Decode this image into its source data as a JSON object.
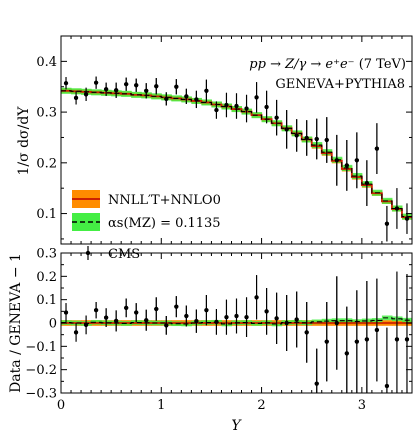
{
  "chart_data": [
    {
      "panel": "main",
      "type": "step-line-with-errorbars",
      "ylabel": "1/σ dσ/dY",
      "xlim": [
        0,
        3.5
      ],
      "ylim": [
        0.04,
        0.45
      ],
      "yticks": [
        "0.1",
        "0.2",
        "0.3",
        "0.4"
      ],
      "annotation": {
        "process": "pp → Z/γ → e⁺e⁻",
        "energy": "(7 TeV)",
        "generator": "GENEVA+PYTHIA8"
      },
      "legend": {
        "placement": "lower-left",
        "entries": [
          "NNLL′T+NNLO0",
          "αs(MZ) = 0.1135",
          "CMS"
        ]
      },
      "bin_edges": [
        0,
        0.1,
        0.2,
        0.3,
        0.4,
        0.5,
        0.6,
        0.7,
        0.8,
        0.9,
        1.0,
        1.1,
        1.2,
        1.3,
        1.4,
        1.5,
        1.6,
        1.7,
        1.8,
        1.9,
        2.0,
        2.1,
        2.2,
        2.3,
        2.4,
        2.5,
        2.6,
        2.7,
        2.8,
        2.9,
        3.0,
        3.1,
        3.2,
        3.3,
        3.4,
        3.5
      ],
      "series": [
        {
          "name": "NNLL′T+NNLO0",
          "color": "#cc2200",
          "band_color": "#ff8c00",
          "values": [
            0.342,
            0.341,
            0.34,
            0.339,
            0.338,
            0.337,
            0.336,
            0.334,
            0.333,
            0.331,
            0.329,
            0.327,
            0.325,
            0.322,
            0.319,
            0.315,
            0.311,
            0.306,
            0.301,
            0.294,
            0.286,
            0.278,
            0.268,
            0.258,
            0.246,
            0.233,
            0.219,
            0.204,
            0.188,
            0.172,
            0.156,
            0.14,
            0.124,
            0.109,
            0.093
          ],
          "band": 0.005
        },
        {
          "name": "αs(MZ) = 0.1135",
          "color": "#000000",
          "band_color": "#44ee44",
          "values": [
            0.342,
            0.341,
            0.34,
            0.339,
            0.338,
            0.337,
            0.336,
            0.334,
            0.333,
            0.331,
            0.329,
            0.327,
            0.325,
            0.322,
            0.319,
            0.315,
            0.311,
            0.306,
            0.301,
            0.294,
            0.286,
            0.278,
            0.268,
            0.258,
            0.246,
            0.235,
            0.221,
            0.206,
            0.19,
            0.174,
            0.158,
            0.141,
            0.125,
            0.11,
            0.094
          ],
          "band": 0.006
        },
        {
          "name": "CMS",
          "type": "errorbar",
          "color": "#000000",
          "x": [
            0.05,
            0.15,
            0.25,
            0.35,
            0.45,
            0.55,
            0.65,
            0.75,
            0.85,
            0.95,
            1.05,
            1.15,
            1.25,
            1.35,
            1.45,
            1.55,
            1.65,
            1.75,
            1.85,
            1.95,
            2.05,
            2.15,
            2.25,
            2.35,
            2.45,
            2.55,
            2.65,
            2.75,
            2.85,
            2.95,
            3.05,
            3.15,
            3.25,
            3.35,
            3.45
          ],
          "y": [
            0.357,
            0.328,
            0.335,
            0.358,
            0.345,
            0.343,
            0.355,
            0.353,
            0.342,
            0.351,
            0.326,
            0.35,
            0.331,
            0.325,
            0.342,
            0.304,
            0.314,
            0.312,
            0.307,
            0.329,
            0.31,
            0.289,
            0.266,
            0.254,
            0.249,
            0.247,
            0.245,
            0.205,
            0.195,
            0.205,
            0.16,
            0.228,
            0.08,
            0.11,
            0.09
          ],
          "err": [
            0.012,
            0.013,
            0.013,
            0.012,
            0.013,
            0.015,
            0.013,
            0.013,
            0.015,
            0.016,
            0.013,
            0.015,
            0.015,
            0.017,
            0.022,
            0.017,
            0.024,
            0.025,
            0.027,
            0.03,
            0.032,
            0.035,
            0.038,
            0.032,
            0.035,
            0.04,
            0.045,
            0.05,
            0.05,
            0.055,
            0.045,
            0.05,
            0.035,
            0.04,
            0.03
          ]
        }
      ]
    },
    {
      "panel": "ratio",
      "type": "step-line-with-errorbars",
      "xlabel": "Y",
      "ylabel": "Data / GENEVA − 1",
      "xlim": [
        0,
        3.5
      ],
      "ylim": [
        -0.3,
        0.3
      ],
      "xticks": [
        "0",
        "1",
        "2",
        "3"
      ],
      "yticks": [
        "−0.3",
        "−0.2",
        "−0.1",
        "0",
        "0.1",
        "0.2",
        "0.3"
      ],
      "series": [
        {
          "name": "NNLL′T+NNLO0",
          "color": "#cc2200",
          "band_color": "#ff8c00",
          "values": [
            0,
            0,
            0,
            0,
            0,
            0,
            0,
            0,
            0,
            0,
            0,
            0,
            0,
            0,
            0,
            0,
            0,
            0,
            0,
            0,
            0,
            0,
            0,
            0,
            0,
            0,
            0,
            0,
            0,
            0,
            0,
            0,
            0,
            0,
            0
          ],
          "band": 0.012
        },
        {
          "name": "αs(MZ) = 0.1135",
          "color": "#000000",
          "band_color": "#44ee44",
          "values": [
            0.002,
            0.0,
            -0.002,
            0.003,
            0.001,
            0.0,
            -0.002,
            0.002,
            0.001,
            0.0,
            0.0,
            -0.003,
            -0.004,
            0.0,
            0.002,
            0.003,
            -0.004,
            0.001,
            0.002,
            -0.002,
            0.001,
            -0.004,
            0.002,
            0.003,
            0.001,
            0.005,
            0.008,
            0.01,
            0.01,
            0.006,
            0.009,
            0.011,
            0.022,
            0.018,
            0.012
          ],
          "band": 0.01
        },
        {
          "name": "CMS",
          "type": "errorbar",
          "color": "#000000",
          "x": [
            0.05,
            0.15,
            0.25,
            0.35,
            0.45,
            0.55,
            0.65,
            0.75,
            0.85,
            0.95,
            1.05,
            1.15,
            1.25,
            1.35,
            1.45,
            1.55,
            1.65,
            1.75,
            1.85,
            1.95,
            2.05,
            2.15,
            2.25,
            2.35,
            2.45,
            2.55,
            2.65,
            2.75,
            2.85,
            2.95,
            3.05,
            3.15,
            3.25,
            3.35,
            3.45
          ],
          "y": [
            0.045,
            -0.04,
            -0.008,
            0.055,
            0.023,
            0.009,
            0.065,
            0.045,
            0.012,
            0.06,
            -0.01,
            0.07,
            0.03,
            0.008,
            0.055,
            0.005,
            0.025,
            0.03,
            0.025,
            0.11,
            0.05,
            0.02,
            0.0,
            0.015,
            -0.04,
            -0.26,
            -0.08,
            0.0,
            -0.13,
            -0.08,
            -0.07,
            -0.03,
            -0.27,
            -0.07,
            -0.07
          ],
          "err": [
            0.04,
            0.04,
            0.04,
            0.035,
            0.04,
            0.045,
            0.04,
            0.04,
            0.045,
            0.05,
            0.04,
            0.045,
            0.045,
            0.05,
            0.065,
            0.055,
            0.075,
            0.075,
            0.085,
            0.095,
            0.1,
            0.11,
            0.12,
            0.12,
            0.13,
            0.15,
            0.17,
            0.2,
            0.2,
            0.22,
            0.25,
            0.22,
            0.25,
            0.29,
            0.28
          ]
        }
      ]
    }
  ]
}
